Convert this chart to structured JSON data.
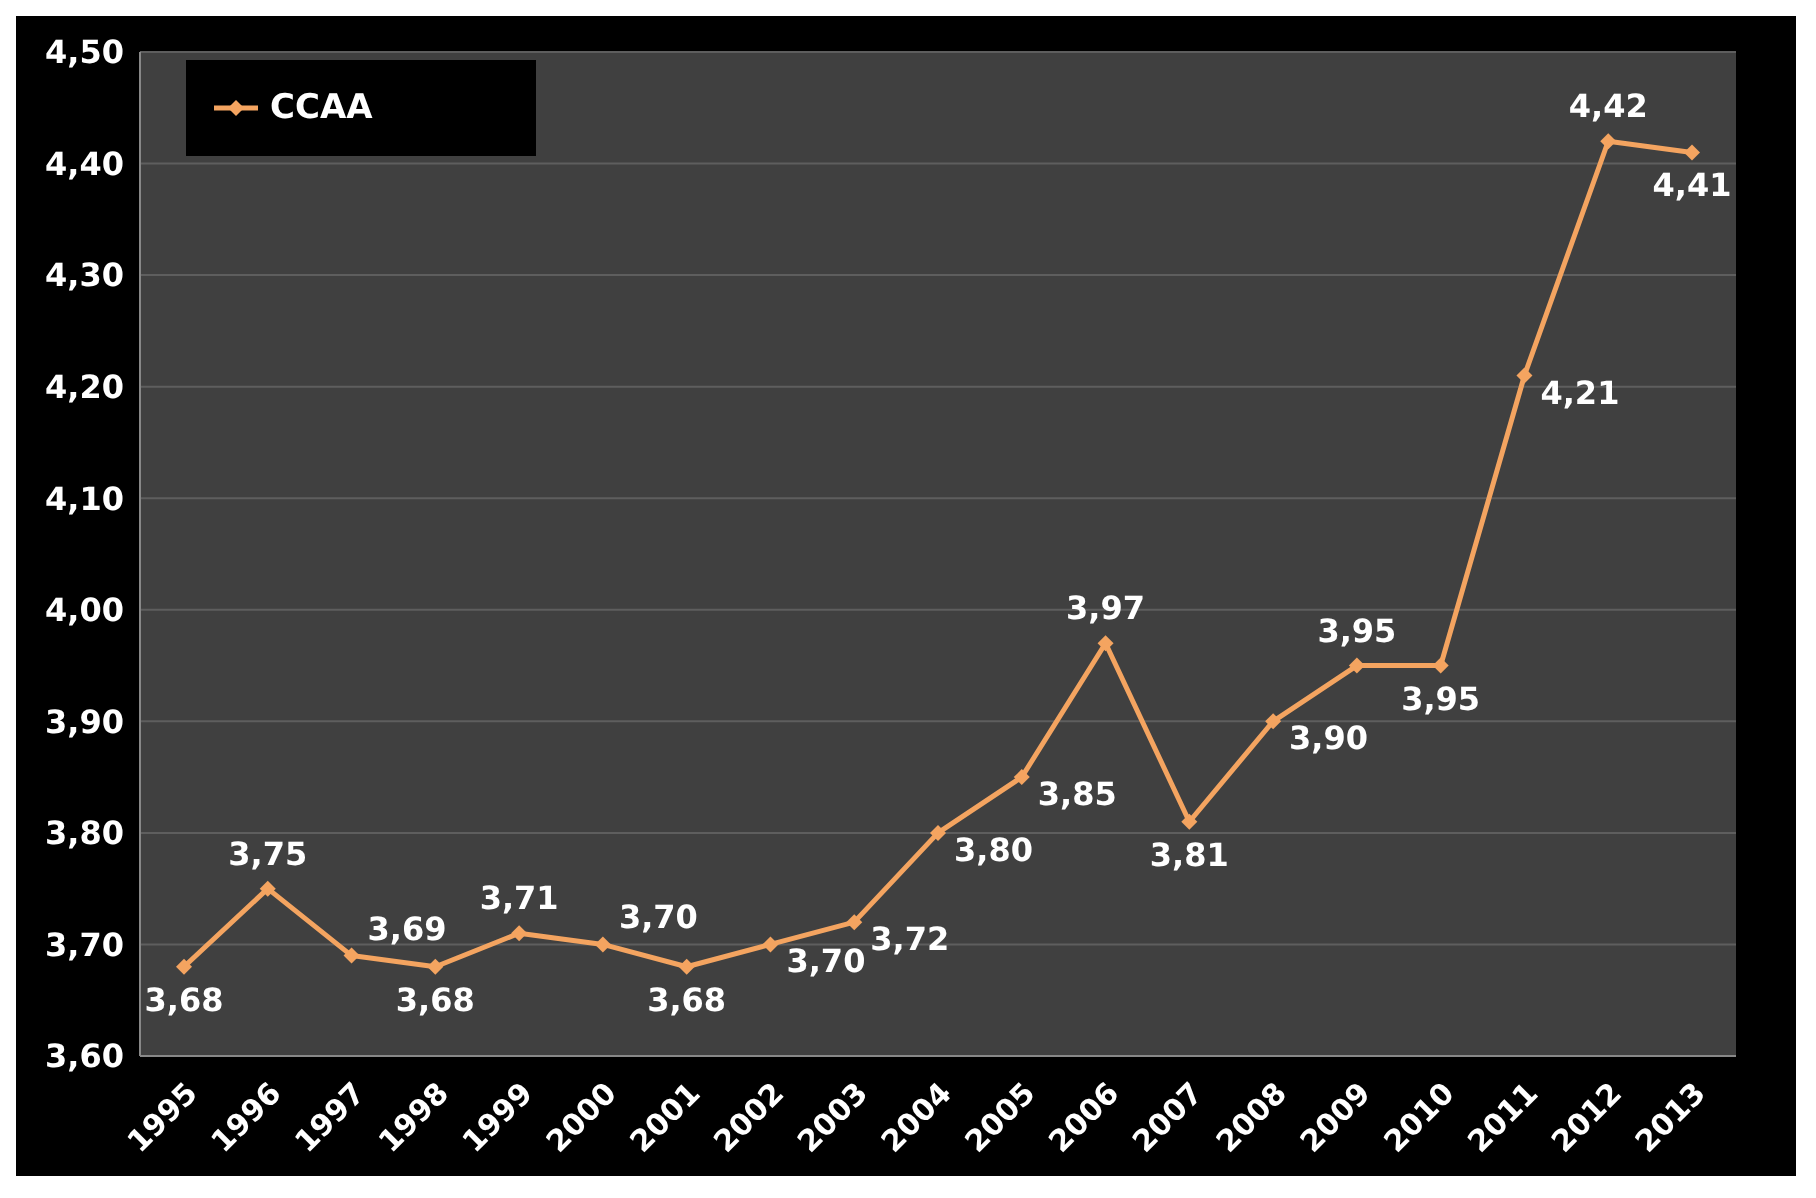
{
  "chart_data": {
    "type": "line",
    "categories": [
      "1995",
      "1996",
      "1997",
      "1998",
      "1999",
      "2000",
      "2001",
      "2002",
      "2003",
      "2004",
      "2005",
      "2006",
      "2007",
      "2008",
      "2009",
      "2010",
      "2011",
      "2012",
      "2013"
    ],
    "series": [
      {
        "name": "CCAA",
        "color": "#f4a460",
        "values": [
          3.68,
          3.75,
          3.69,
          3.68,
          3.71,
          3.7,
          3.68,
          3.7,
          3.72,
          3.8,
          3.85,
          3.97,
          3.81,
          3.9,
          3.95,
          3.95,
          4.21,
          4.42,
          4.41
        ],
        "value_labels": [
          "3,68",
          "3,75",
          "3,69",
          "3,68",
          "3,71",
          "3,70",
          "3,68",
          "3,70",
          "3,72",
          "3,80",
          "3,85",
          "3,97",
          "3,81",
          "3,90",
          "3,95",
          "3,95",
          "4,21",
          "4,42",
          "4,41"
        ]
      }
    ],
    "ylim": [
      3.6,
      4.5
    ],
    "yticks": [
      {
        "value": 3.6,
        "label": "3,60"
      },
      {
        "value": 3.7,
        "label": "3,70"
      },
      {
        "value": 3.8,
        "label": "3,80"
      },
      {
        "value": 3.9,
        "label": "3,90"
      },
      {
        "value": 4.0,
        "label": "4,00"
      },
      {
        "value": 4.1,
        "label": "4,10"
      },
      {
        "value": 4.2,
        "label": "4,20"
      },
      {
        "value": 4.3,
        "label": "4,30"
      },
      {
        "value": 4.4,
        "label": "4,40"
      },
      {
        "value": 4.5,
        "label": "4,50"
      }
    ],
    "grid": "y",
    "legend": "top left",
    "marker": "diamond",
    "line_style": "solid"
  }
}
